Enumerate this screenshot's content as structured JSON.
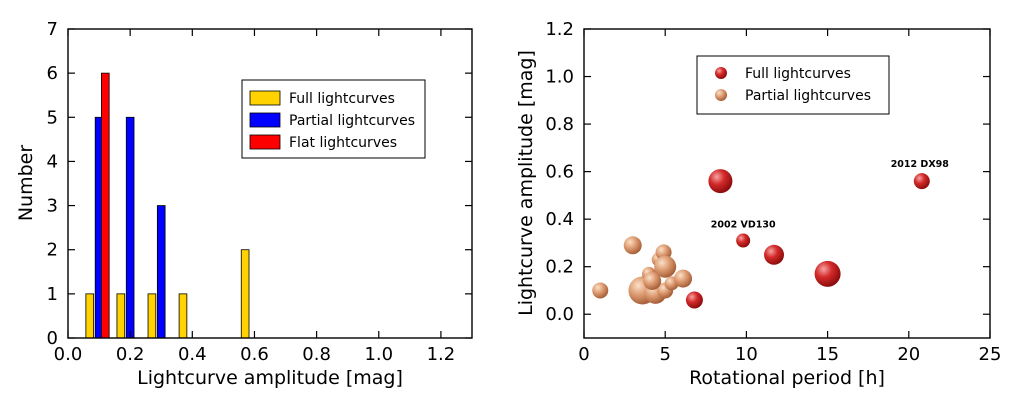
{
  "colors": {
    "full": "#ffd200",
    "partial": "#0000ff",
    "flat": "#ff0000",
    "full_marker": "#cc1d1d",
    "partial_marker": "#d8926a"
  },
  "chart_data": [
    {
      "type": "bar",
      "xlabel": "Lightcurve amplitude [mag]",
      "ylabel": "Number",
      "xlim": [
        0.0,
        1.3
      ],
      "ylim": [
        0,
        7
      ],
      "xticks": [
        "0.0",
        "0.2",
        "0.4",
        "0.6",
        "0.8",
        "1.0",
        "1.2"
      ],
      "yticks": [
        "0",
        "1",
        "2",
        "3",
        "4",
        "5",
        "6",
        "7"
      ],
      "legend_position": "top-right",
      "series": [
        {
          "name": "Full lightcurves",
          "color": "#ffd200",
          "bars": [
            {
              "x": 0.07,
              "value": 1
            },
            {
              "x": 0.17,
              "value": 1
            },
            {
              "x": 0.27,
              "value": 1
            },
            {
              "x": 0.37,
              "value": 1
            },
            {
              "x": 0.57,
              "value": 2
            }
          ]
        },
        {
          "name": "Partial lightcurves",
          "color": "#0000ff",
          "bars": [
            {
              "x": 0.1,
              "value": 5
            },
            {
              "x": 0.2,
              "value": 5
            },
            {
              "x": 0.3,
              "value": 3
            }
          ]
        },
        {
          "name": "Flat lightcurves",
          "color": "#ff0000",
          "bars": [
            {
              "x": 0.12,
              "value": 6
            }
          ]
        }
      ]
    },
    {
      "type": "scatter",
      "xlabel": "Rotational period [h]",
      "ylabel": "Lightcurve amplitude [mag]",
      "xlim": [
        0,
        25
      ],
      "ylim": [
        -0.1,
        1.2
      ],
      "xticks": [
        "0",
        "5",
        "10",
        "15",
        "20",
        "25"
      ],
      "yticks": [
        "0.0",
        "0.2",
        "0.4",
        "0.6",
        "0.8",
        "1.0",
        "1.2"
      ],
      "legend_position": "top-left",
      "series": [
        {
          "name": "Full lightcurves",
          "color": "#cc1d1d",
          "points": [
            {
              "x": 8.4,
              "y": 0.56,
              "r": 12
            },
            {
              "x": 20.8,
              "y": 0.56,
              "r": 8,
              "label": "2012 DX98"
            },
            {
              "x": 9.8,
              "y": 0.31,
              "r": 7,
              "label": "2002 VD130"
            },
            {
              "x": 11.7,
              "y": 0.25,
              "r": 10
            },
            {
              "x": 15.0,
              "y": 0.17,
              "r": 13
            },
            {
              "x": 6.8,
              "y": 0.06,
              "r": 8.5
            }
          ]
        },
        {
          "name": "Partial lightcurves",
          "color": "#d8926a",
          "points": [
            {
              "x": 1.0,
              "y": 0.1,
              "r": 8
            },
            {
              "x": 3.0,
              "y": 0.29,
              "r": 9
            },
            {
              "x": 3.6,
              "y": 0.1,
              "r": 14
            },
            {
              "x": 4.0,
              "y": 0.17,
              "r": 7
            },
            {
              "x": 4.4,
              "y": 0.09,
              "r": 11
            },
            {
              "x": 4.6,
              "y": 0.23,
              "r": 7
            },
            {
              "x": 4.9,
              "y": 0.26,
              "r": 8
            },
            {
              "x": 5.0,
              "y": 0.2,
              "r": 11
            },
            {
              "x": 5.0,
              "y": 0.1,
              "r": 8
            },
            {
              "x": 5.4,
              "y": 0.13,
              "r": 7
            },
            {
              "x": 6.1,
              "y": 0.15,
              "r": 9
            },
            {
              "x": 4.2,
              "y": 0.14,
              "r": 9
            }
          ]
        }
      ]
    }
  ]
}
